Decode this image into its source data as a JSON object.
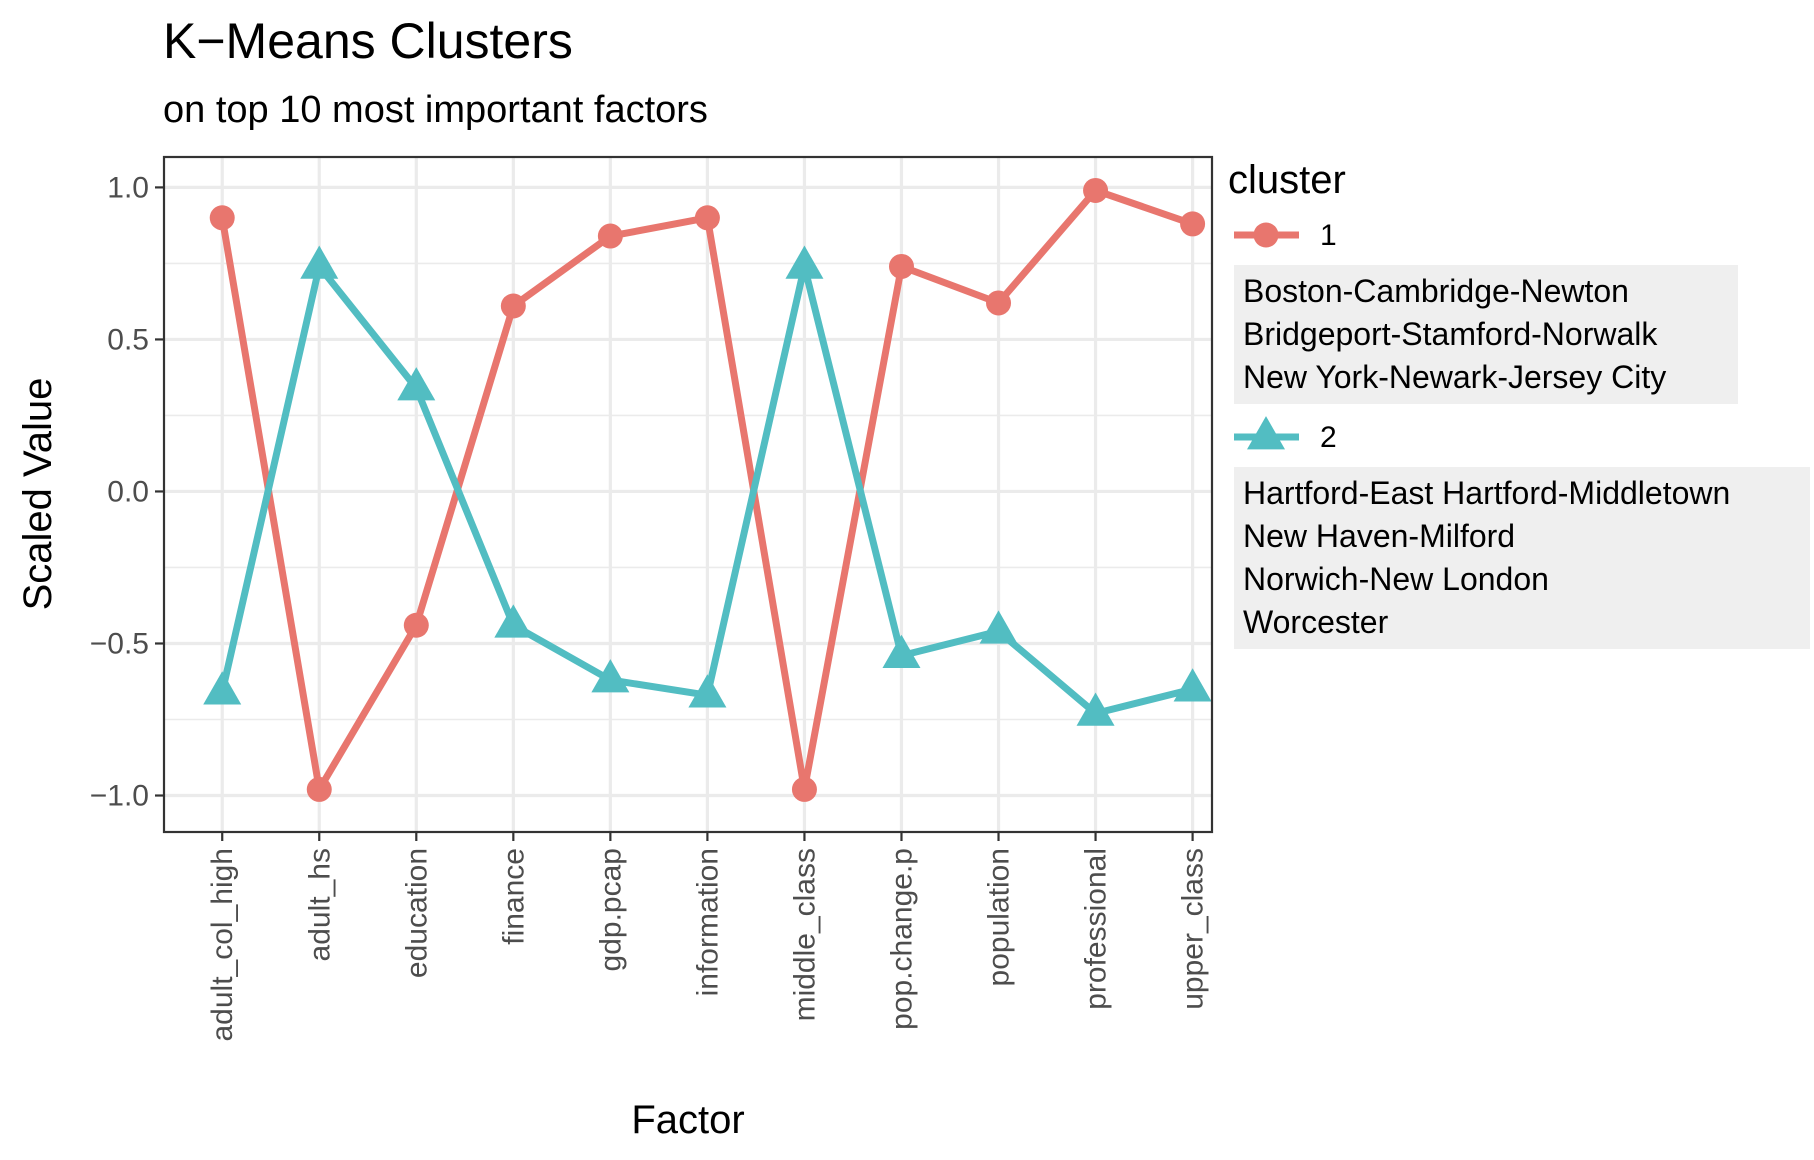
{
  "chart_data": {
    "type": "line",
    "title": "K−Means Clusters",
    "subtitle": "on top 10 most important factors",
    "xlabel": "Factor",
    "ylabel": "Scaled Value",
    "categories": [
      "adult_col_high",
      "adult_hs",
      "education",
      "finance",
      "gdp.pcap",
      "information",
      "middle_class",
      "pop.change.p",
      "population",
      "professional",
      "upper_class"
    ],
    "ylim": [
      -1.12,
      1.1
    ],
    "yticks": [
      1.0,
      0.5,
      0.0,
      -0.5,
      -1.0
    ],
    "ytick_labels": [
      "1.0",
      "0.5",
      "0.0",
      "−0.5",
      "−1.0"
    ],
    "grid": true,
    "legend_placement": "right",
    "legend_title": "cluster",
    "series": [
      {
        "name": "1",
        "marker": "circle",
        "color": "#E8766E",
        "values": [
          0.9,
          -0.98,
          -0.44,
          0.61,
          0.84,
          0.9,
          -0.98,
          0.74,
          0.62,
          0.99,
          0.88
        ],
        "members": [
          "Boston-Cambridge-Newton",
          "Bridgeport-Stamford-Norwalk",
          "New York-Newark-Jersey City"
        ]
      },
      {
        "name": "2",
        "marker": "triangle",
        "color": "#52BDC2",
        "values": [
          -0.66,
          0.74,
          0.34,
          -0.44,
          -0.62,
          -0.67,
          0.74,
          -0.54,
          -0.46,
          -0.73,
          -0.65
        ],
        "members": [
          "Hartford-East Hartford-Middletown",
          "New Haven-Milford",
          "Norwich-New London",
          "Worcester"
        ]
      }
    ]
  }
}
